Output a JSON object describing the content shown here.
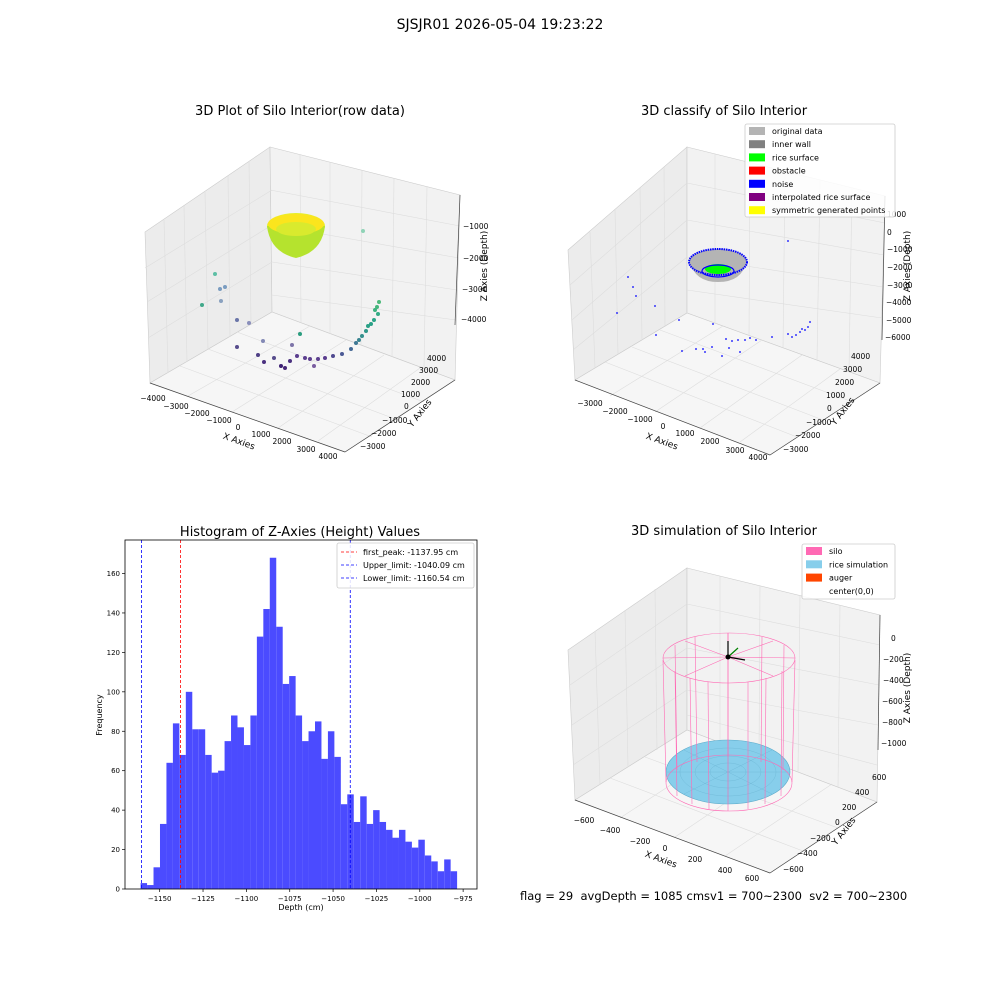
{
  "figure": {
    "title": "SJSJR01 2026-05-04 19:23:22",
    "status_text": "flag = 29  avgDepth = 1085 cmsv1 = 700~2300  sv2 = 700~2300"
  },
  "colors": {
    "hist_bar": "#4b4bff",
    "first_peak_line": "#ff0000",
    "limit_line": "#0000ff",
    "original_data": "#b4b4b4",
    "inner_wall": "#808080",
    "rice_surface": "#00ff00",
    "obstacle": "#ff0000",
    "noise": "#0000ff",
    "interpolated_rice_surface": "#800080",
    "symmetric_generated_points": "#ffff00",
    "silo": "#ff69b4",
    "rice_simulation": "#87ceeb",
    "auger": "#ff4500"
  },
  "panels": {
    "raw": {
      "title": "3D Plot of Silo Interior(row data)",
      "xlabel": "X Axies",
      "ylabel": "Y Axies",
      "zlabel": "Z Axies (Depth)",
      "x_ticks": [
        "−4000",
        "−3000",
        "−2000",
        "−1000",
        "0",
        "1000",
        "2000",
        "3000",
        "4000"
      ],
      "y_ticks": [
        "−3000",
        "−2000",
        "−1000",
        "0",
        "1000",
        "2000",
        "3000",
        "4000"
      ],
      "z_ticks": [
        "−1000",
        "−2000",
        "−3000",
        "−4000"
      ]
    },
    "classify": {
      "title": "3D classify of Silo Interior",
      "xlabel": "X Axies",
      "ylabel": "Y Axies",
      "zlabel": "Z Axies (Depth)",
      "x_ticks": [
        "−3000",
        "−2000",
        "−1000",
        "0",
        "1000",
        "2000",
        "3000",
        "4000"
      ],
      "y_ticks": [
        "−3000",
        "−2000",
        "−1000",
        "0",
        "1000",
        "2000",
        "3000",
        "4000"
      ],
      "z_ticks": [
        "1000",
        "0",
        "−1000",
        "−2000",
        "−3000",
        "−4000",
        "−5000",
        "−6000"
      ],
      "legend": [
        {
          "label": "original data",
          "color": "#b4b4b4"
        },
        {
          "label": "inner wall",
          "color": "#808080"
        },
        {
          "label": "rice surface",
          "color": "#00ff00"
        },
        {
          "label": "obstacle",
          "color": "#ff0000"
        },
        {
          "label": "noise",
          "color": "#0000ff"
        },
        {
          "label": "interpolated rice surface",
          "color": "#800080"
        },
        {
          "label": "symmetric generated points",
          "color": "#ffff00"
        }
      ]
    },
    "simulation": {
      "title": "3D simulation of Silo Interior",
      "xlabel": "X Axies",
      "ylabel": "Y Axies",
      "zlabel": "Z Axies (Depth)",
      "x_ticks": [
        "−600",
        "−400",
        "−200",
        "0",
        "200",
        "400",
        "600"
      ],
      "y_ticks": [
        "−600",
        "−400",
        "−200",
        "0",
        "200",
        "400",
        "600"
      ],
      "z_ticks": [
        "0",
        "−200",
        "−400",
        "−600",
        "−800",
        "−1000"
      ],
      "legend": [
        {
          "label": "silo",
          "color": "#ff69b4"
        },
        {
          "label": "rice simulation",
          "color": "#87ceeb"
        },
        {
          "label": "auger",
          "color": "#ff4500"
        },
        {
          "label": "center(0,0)",
          "color": ""
        }
      ]
    }
  },
  "chart_data": {
    "type": "bar",
    "title": "Histogram of Z-Axies (Height) Values",
    "xlabel": "Depth (cm)",
    "ylabel": "Frequency",
    "xlim": [
      -1170,
      -967
    ],
    "ylim": [
      0,
      177
    ],
    "x_ticks": [
      -1150,
      -1125,
      -1100,
      -1075,
      -1050,
      -1025,
      -1000,
      -975
    ],
    "x_tick_labels": [
      "−1150",
      "−1125",
      "−1100",
      "−1075",
      "−1050",
      "−1025",
      "−1000",
      "−975"
    ],
    "y_ticks": [
      0,
      20,
      40,
      60,
      80,
      100,
      120,
      140,
      160
    ],
    "bin_start": -1161.0,
    "bin_width": 3.725,
    "values": [
      3,
      2,
      11,
      33,
      64,
      84,
      68,
      100,
      81,
      81,
      68,
      59,
      60,
      75,
      88,
      82,
      73,
      88,
      128,
      142,
      168,
      133,
      104,
      108,
      88,
      75,
      80,
      85,
      66,
      80,
      67,
      43,
      48,
      34,
      47,
      33,
      40,
      34,
      30,
      26,
      30,
      24,
      21,
      25,
      17,
      14,
      9,
      15,
      9
    ],
    "vlines": [
      {
        "label": "first_peak: -1137.95 cm",
        "x": -1137.95,
        "color": "#ff0000"
      },
      {
        "label": "Upper_limit: -1040.09 cm",
        "x": -1040.09,
        "color": "#0000ff"
      },
      {
        "label": "Lower_limit: -1160.54 cm",
        "x": -1160.54,
        "color": "#0000ff"
      }
    ],
    "legend_position": "top-right"
  }
}
